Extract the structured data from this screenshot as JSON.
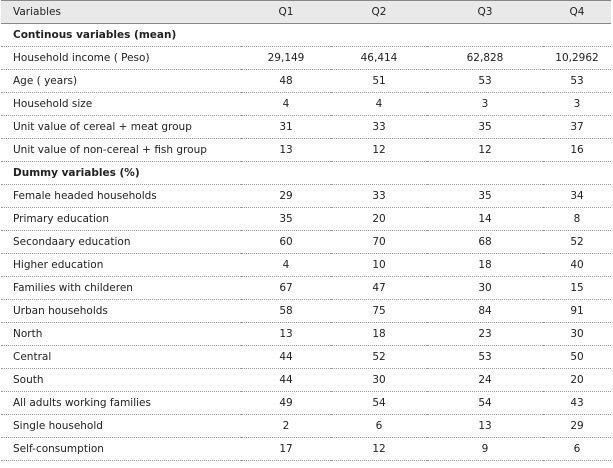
{
  "table": {
    "columns": [
      "Variables",
      "Q1",
      "Q2",
      "Q3",
      "Q4"
    ],
    "sections": [
      {
        "title": "Continous variables (mean)",
        "rows": [
          {
            "label": "Household income ( Peso)",
            "values": [
              "29,149",
              "46,414",
              "62,828",
              "10,2962"
            ]
          },
          {
            "label": "Age ( years)",
            "values": [
              "48",
              "51",
              "53",
              "53"
            ]
          },
          {
            "label": "Household size",
            "values": [
              "4",
              "4",
              "3",
              "3"
            ]
          },
          {
            "label": "Unit value of cereal + meat group",
            "values": [
              "31",
              "33",
              "35",
              "37"
            ]
          },
          {
            "label": "Unit value of non-cereal + fish group",
            "values": [
              "13",
              "12",
              "12",
              "16"
            ]
          }
        ]
      },
      {
        "title": "Dummy variables (%)",
        "rows": [
          {
            "label": "Female headed households",
            "values": [
              "29",
              "33",
              "35",
              "34"
            ]
          },
          {
            "label": "Primary education",
            "values": [
              "35",
              "20",
              "14",
              "8"
            ]
          },
          {
            "label": "Secondaary education",
            "values": [
              "60",
              "70",
              "68",
              "52"
            ]
          },
          {
            "label": "Higher education",
            "values": [
              "4",
              "10",
              "18",
              "40"
            ]
          },
          {
            "label": "Families with childeren",
            "values": [
              "67",
              "47",
              "30",
              "15"
            ]
          },
          {
            "label": "Urban households",
            "values": [
              "58",
              "75",
              "84",
              "91"
            ]
          },
          {
            "label": "North",
            "values": [
              "13",
              "18",
              "23",
              "30"
            ]
          },
          {
            "label": "Central",
            "values": [
              "44",
              "52",
              "53",
              "50"
            ]
          },
          {
            "label": "South",
            "values": [
              "44",
              "30",
              "24",
              "20"
            ]
          },
          {
            "label": "All adults working families",
            "values": [
              "49",
              "54",
              "54",
              "43"
            ]
          },
          {
            "label": "Single household",
            "values": [
              "2",
              "6",
              "13",
              "29"
            ]
          },
          {
            "label": "Self-consumption",
            "values": [
              "17",
              "12",
              "9",
              "6"
            ]
          }
        ]
      }
    ]
  }
}
